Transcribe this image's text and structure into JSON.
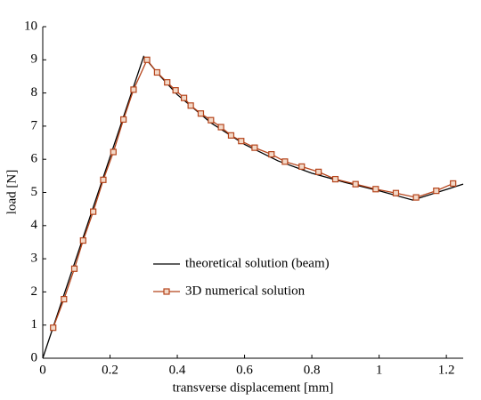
{
  "chart_data": {
    "type": "line",
    "xlabel": "transverse displacement [mm]",
    "ylabel": "load [N]",
    "xlim": [
      0,
      1.25
    ],
    "ylim": [
      0,
      10
    ],
    "xticks": [
      0,
      0.2,
      0.4,
      0.6,
      0.8,
      1,
      1.2
    ],
    "yticks": [
      0,
      1,
      2,
      3,
      4,
      5,
      6,
      7,
      8,
      9,
      10
    ],
    "series": [
      {
        "name": "theoretical solution (beam)",
        "color": "#000000",
        "marker": "none",
        "x": [
          0,
          0.3,
          0.35,
          0.4,
          0.5,
          0.6,
          0.7,
          0.8,
          0.9,
          1.0,
          1.1,
          1.25
        ],
        "values": [
          0,
          9.1,
          8.5,
          7.95,
          7.1,
          6.45,
          5.95,
          5.58,
          5.3,
          5.05,
          4.77,
          5.25
        ]
      },
      {
        "name": "3D numerical solution",
        "color": "#b5441b",
        "marker": "square",
        "x": [
          0.031,
          0.063,
          0.094,
          0.12,
          0.15,
          0.18,
          0.21,
          0.24,
          0.27,
          0.31,
          0.34,
          0.37,
          0.395,
          0.42,
          0.44,
          0.47,
          0.5,
          0.53,
          0.56,
          0.59,
          0.63,
          0.68,
          0.72,
          0.77,
          0.82,
          0.87,
          0.93,
          0.99,
          1.05,
          1.11,
          1.17,
          1.22
        ],
        "values": [
          0.92,
          1.78,
          2.7,
          3.55,
          4.42,
          5.38,
          6.22,
          7.2,
          8.1,
          9.0,
          8.62,
          8.32,
          8.08,
          7.85,
          7.62,
          7.38,
          7.18,
          6.97,
          6.72,
          6.55,
          6.35,
          6.15,
          5.93,
          5.78,
          5.62,
          5.4,
          5.25,
          5.1,
          4.98,
          4.85,
          5.05,
          5.27
        ]
      }
    ]
  }
}
